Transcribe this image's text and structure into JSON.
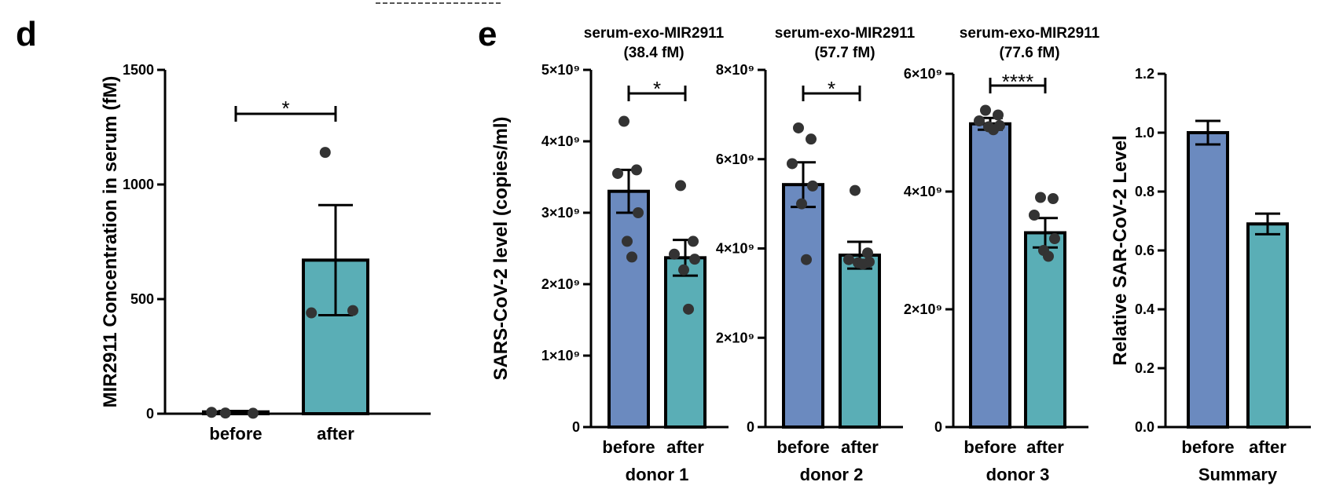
{
  "colors": {
    "before": "#6b8abf",
    "after": "#5aaeb6",
    "outline": "#000000",
    "point": "#333333"
  },
  "chart_data": [
    {
      "type": "bar",
      "panel": "d",
      "categories": [
        "before",
        "after"
      ],
      "values": [
        8,
        670
      ],
      "errors": [
        4,
        240
      ],
      "points": [
        [
          3,
          2,
          6
        ],
        [
          1140,
          450,
          440
        ]
      ],
      "ylabel": "MIR2911 Concentration in serum (fM)",
      "ylim": [
        0,
        1500
      ],
      "yticks": [
        0,
        500,
        1000,
        1500
      ],
      "ytick_labels": [
        "0",
        "500",
        "1000",
        "1500"
      ],
      "significance": "*"
    },
    {
      "type": "bar",
      "panel": "e",
      "title": [
        "serum-exo-MIR2911",
        "(38.4 fM)"
      ],
      "group_label": "donor 1",
      "categories": [
        "before",
        "after"
      ],
      "values": [
        3300000000.0,
        2370000000.0
      ],
      "errors": [
        300000000.0,
        250000000.0
      ],
      "points": [
        [
          4280000000.0,
          3600000000.0,
          3550000000.0,
          3000000000.0,
          2600000000.0,
          2380000000.0
        ],
        [
          3380000000.0,
          2600000000.0,
          2420000000.0,
          2350000000.0,
          2200000000.0,
          1650000000.0
        ]
      ],
      "ylabel": "SARS-CoV-2 level (copies/ml)",
      "ylim": [
        0,
        5000000000.0
      ],
      "yticks": [
        0,
        1000000000.0,
        2000000000.0,
        3000000000.0,
        4000000000.0,
        5000000000.0
      ],
      "ytick_labels": [
        "0",
        "1×10⁹",
        "2×10⁹",
        "3×10⁹",
        "4×10⁹",
        "5×10⁹"
      ],
      "significance": "*"
    },
    {
      "type": "bar",
      "title": [
        "serum-exo-MIR2911",
        "(57.7 fM)"
      ],
      "group_label": "donor 2",
      "categories": [
        "before",
        "after"
      ],
      "values": [
        5430000000.0,
        3850000000.0
      ],
      "errors": [
        500000000.0,
        300000000.0
      ],
      "points": [
        [
          6700000000.0,
          6450000000.0,
          5900000000.0,
          5400000000.0,
          5000000000.0,
          3750000000.0
        ],
        [
          5300000000.0,
          3900000000.0,
          3750000000.0,
          3700000000.0,
          3680000000.0,
          3650000000.0
        ]
      ],
      "ylabel": "",
      "ylim": [
        0,
        8000000000.0
      ],
      "yticks": [
        0,
        2000000000.0,
        4000000000.0,
        6000000000.0,
        8000000000.0
      ],
      "ytick_labels": [
        "0",
        "2×10⁹",
        "4×10⁹",
        "6×10⁹",
        "8×10⁹"
      ],
      "significance": "*"
    },
    {
      "type": "bar",
      "title": [
        "serum-exo-MIR2911",
        "(77.6 fM)"
      ],
      "group_label": "donor 3",
      "categories": [
        "before",
        "after"
      ],
      "values": [
        5150000000.0,
        3300000000.0
      ],
      "errors": [
        100000000.0,
        250000000.0
      ],
      "points": [
        [
          5380000000.0,
          5300000000.0,
          5200000000.0,
          5120000000.0,
          5100000000.0,
          5050000000.0
        ],
        [
          3900000000.0,
          3880000000.0,
          3600000000.0,
          3200000000.0,
          3000000000.0,
          2900000000.0
        ]
      ],
      "ylabel": "",
      "ylim": [
        0,
        6000000000.0
      ],
      "yticks": [
        0,
        2000000000.0,
        4000000000.0,
        6000000000.0
      ],
      "ytick_labels": [
        "0",
        "2×10⁹",
        "4×10⁹",
        "6×10⁹"
      ],
      "significance": "****"
    },
    {
      "type": "bar",
      "group_label": "Summary",
      "categories": [
        "before",
        "after"
      ],
      "values": [
        1.0,
        0.69
      ],
      "errors": [
        0.04,
        0.035
      ],
      "points": [
        [],
        []
      ],
      "ylabel": "Relative SAR-CoV-2 Level",
      "ylim": [
        0,
        1.2
      ],
      "yticks": [
        0,
        0.2,
        0.4,
        0.6,
        0.8,
        1.0,
        1.2
      ],
      "ytick_labels": [
        "0.0",
        "0.2",
        "0.4",
        "0.6",
        "0.8",
        "1.0",
        "1.2"
      ],
      "significance": ""
    }
  ]
}
